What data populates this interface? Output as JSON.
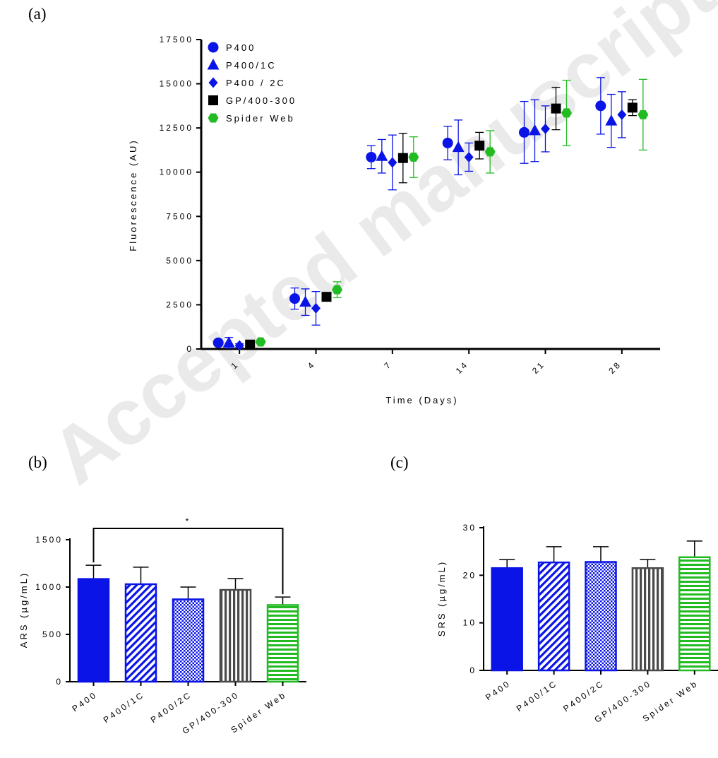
{
  "labels": {
    "a": "(a)",
    "b": "(b)",
    "c": "(c)"
  },
  "watermark": "Accepted manuscript",
  "colors": {
    "blue": "#0a14e6",
    "black": "#000000",
    "green": "#22bb22",
    "gray": "#4a4a4a"
  },
  "chart_data": [
    {
      "id": "a",
      "type": "scatter",
      "xlabel": "Time (Days)",
      "ylabel": "Fluorescence (AU)",
      "ylim": [
        0,
        17500
      ],
      "yticks": [
        0,
        2500,
        5000,
        7500,
        10000,
        12500,
        15000,
        17500
      ],
      "categories": [
        "1",
        "4",
        "7",
        "14",
        "21",
        "28"
      ],
      "legend_position": "top-left",
      "series": [
        {
          "name": "P400",
          "marker": "circle",
          "color": "#0a14e6",
          "values": [
            350,
            2850,
            10850,
            11650,
            12250,
            13750
          ],
          "errors": [
            100,
            600,
            650,
            950,
            1750,
            1600
          ]
        },
        {
          "name": "P400/1C",
          "marker": "triangle",
          "color": "#0a14e6",
          "values": [
            350,
            2650,
            10900,
            11400,
            12350,
            12900
          ],
          "errors": [
            300,
            750,
            950,
            1550,
            1750,
            1500
          ]
        },
        {
          "name": "P400 / 2C",
          "marker": "diamond",
          "color": "#0a14e6",
          "values": [
            200,
            2300,
            10550,
            10850,
            12450,
            13250
          ],
          "errors": [
            100,
            950,
            1550,
            800,
            1300,
            1300
          ]
        },
        {
          "name": "GP/400-300",
          "marker": "square",
          "color": "#000000",
          "values": [
            250,
            2950,
            10800,
            11500,
            13600,
            13650
          ],
          "errors": [
            100,
            100,
            1400,
            750,
            1200,
            450
          ]
        },
        {
          "name": "Spider Web",
          "marker": "hexagon",
          "color": "#22bb22",
          "values": [
            400,
            3350,
            10850,
            11150,
            13350,
            13250
          ],
          "errors": [
            100,
            450,
            1150,
            1200,
            1850,
            2000
          ]
        }
      ]
    },
    {
      "id": "b",
      "type": "bar",
      "ylabel": "ARS (µg/mL)",
      "ylim": [
        0,
        1500
      ],
      "yticks": [
        0,
        500,
        1000,
        1500
      ],
      "categories": [
        "P400",
        "P400/1C",
        "P400/2C",
        "GP/400-300",
        "Spider Web"
      ],
      "values": [
        1085,
        1030,
        870,
        970,
        810
      ],
      "errors": [
        145,
        180,
        130,
        120,
        85
      ],
      "patterns": [
        "solid",
        "diagonal",
        "crosshatch",
        "vertical",
        "horizontal"
      ],
      "colors": [
        "#0a14e6",
        "#0a14e6",
        "#0a14e6",
        "#4a4a4a",
        "#22bb22"
      ],
      "significance": {
        "from": 0,
        "to": 4,
        "label": "*"
      }
    },
    {
      "id": "c",
      "type": "bar",
      "ylabel": "SRS (µg/mL)",
      "ylim": [
        0,
        30
      ],
      "yticks": [
        0,
        10,
        20,
        30
      ],
      "categories": [
        "P400",
        "P400/1C",
        "P400/2C",
        "GP/400-300",
        "Spider Web"
      ],
      "values": [
        21.5,
        22.7,
        22.8,
        21.5,
        23.8
      ],
      "errors": [
        1.8,
        3.3,
        3.2,
        1.8,
        3.4
      ],
      "patterns": [
        "solid",
        "diagonal",
        "crosshatch",
        "vertical",
        "horizontal"
      ],
      "colors": [
        "#0a14e6",
        "#0a14e6",
        "#0a14e6",
        "#4a4a4a",
        "#22bb22"
      ]
    }
  ]
}
